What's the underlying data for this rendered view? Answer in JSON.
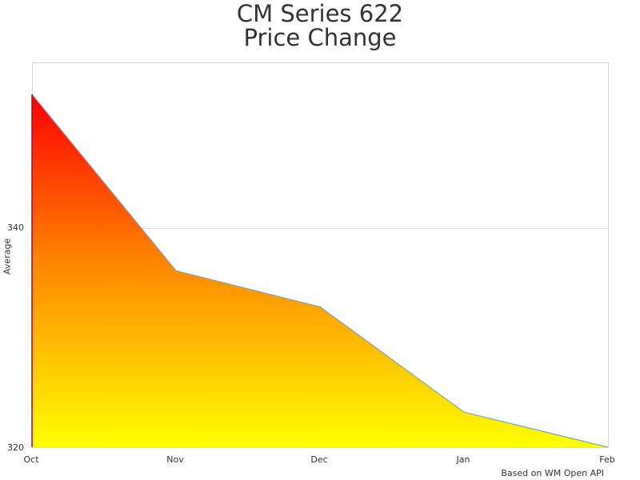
{
  "chart_data": {
    "type": "area",
    "title": "CM Series 622\nPrice Change",
    "title_lines": [
      "CM Series 622",
      "Price Change"
    ],
    "xlabel": "",
    "ylabel": "Average",
    "categories": [
      "Oct",
      "Nov",
      "Dec",
      "Jan",
      "Feb"
    ],
    "values": [
      352.2,
      336.1,
      332.8,
      323.2,
      320.0
    ],
    "ylim": [
      320,
      355
    ],
    "yticks": [
      320,
      340
    ],
    "grid": true,
    "legend": null,
    "fill_gradient": {
      "top": "#ff0000",
      "bottom": "#ffff00"
    },
    "line_color": "#6aa6d8",
    "credit": "Based on WM Open API"
  },
  "labels": {
    "y": {
      "t320": "320",
      "t340": "340"
    }
  }
}
